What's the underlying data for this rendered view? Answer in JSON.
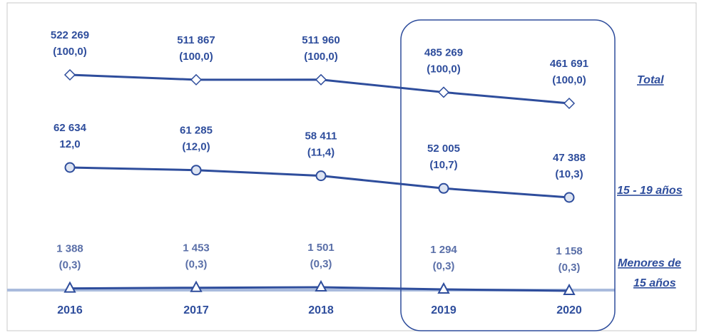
{
  "chart_data": {
    "type": "line",
    "categories": [
      "2016",
      "2017",
      "2018",
      "2019",
      "2020"
    ],
    "series": [
      {
        "name": "Total",
        "color": "#2e4d9c",
        "marker": "diamond",
        "values": [
          522269,
          511867,
          511960,
          485269,
          461691
        ],
        "value_labels": [
          "522 269",
          "511 867",
          "511 960",
          "485 269",
          "461 691"
        ],
        "shares": [
          100.0,
          100.0,
          100.0,
          100.0,
          100.0
        ],
        "share_labels": [
          "(100,0)",
          "(100,0)",
          "(100,0)",
          "(100,0)",
          "(100,0)"
        ]
      },
      {
        "name": "15 - 19 años",
        "color": "#2e4d9c",
        "marker": "circle",
        "values": [
          62634,
          61285,
          58411,
          52005,
          47388
        ],
        "value_labels": [
          "62 634",
          "61 285",
          "58 411",
          "52 005",
          "47 388"
        ],
        "shares": [
          12.0,
          12.0,
          11.4,
          10.7,
          10.3
        ],
        "share_labels": [
          "12,0",
          "(12,0)",
          "(11,4)",
          "(10,7)",
          "(10,3)"
        ]
      },
      {
        "name": "Menores de 15 años",
        "color": "#2e4d9c",
        "marker": "triangle",
        "values": [
          1388,
          1453,
          1501,
          1294,
          1158
        ],
        "value_labels": [
          "1 388",
          "1 453",
          "1 501",
          "1 294",
          "1 158"
        ],
        "shares": [
          0.3,
          0.3,
          0.3,
          0.3,
          0.3
        ],
        "share_labels": [
          "(0,3)",
          "(0,3)",
          "(0,3)",
          "(0,3)",
          "(0,3)"
        ]
      }
    ]
  }
}
